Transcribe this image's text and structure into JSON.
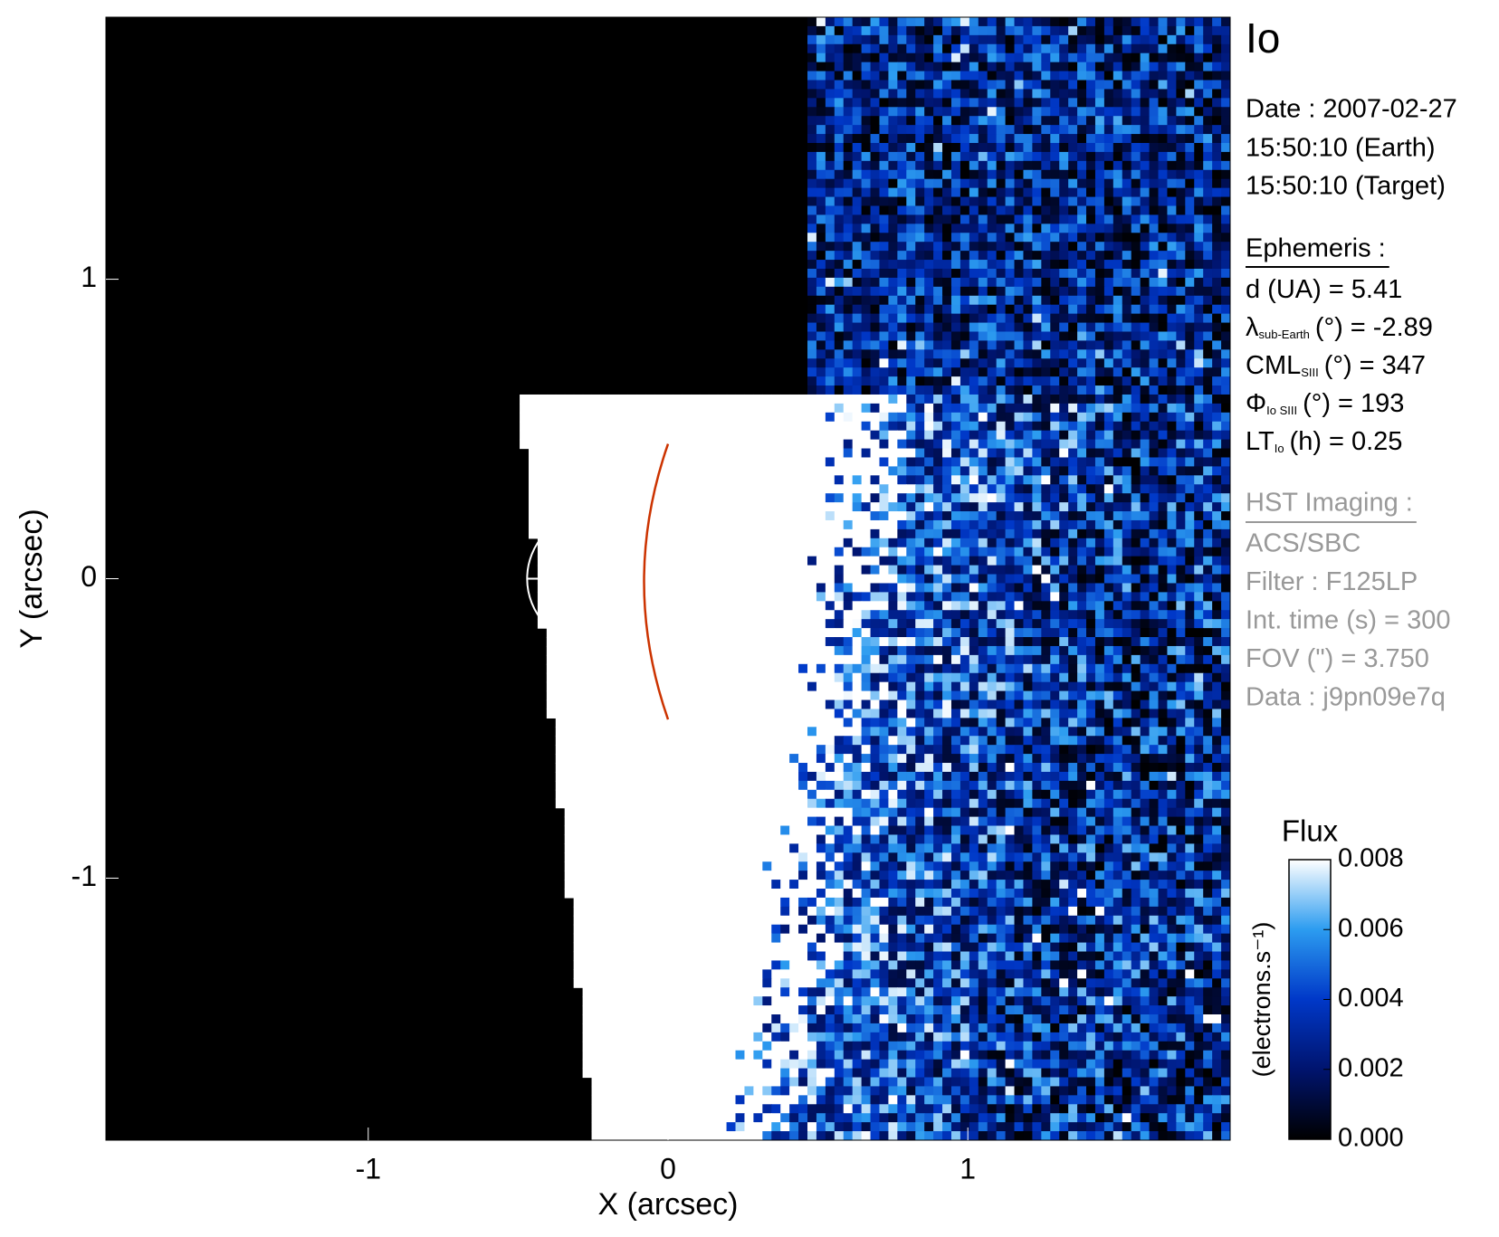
{
  "chart_data": {
    "type": "heatmap",
    "title": "Io",
    "xlabel": "X (arcsec)",
    "ylabel": "Y (arcsec)",
    "xlim": [
      -1.875,
      1.875
    ],
    "ylim": [
      -1.875,
      1.875
    ],
    "xticks": [
      -1,
      0,
      1
    ],
    "yticks": [
      -1,
      0,
      1
    ],
    "colorbar": {
      "label": "Flux",
      "unit": "(electrons.s⁻¹)",
      "lim": [
        0,
        0.008
      ],
      "ticks": [
        {
          "value": 0,
          "label": "0.000"
        },
        {
          "value": 0.002,
          "label": "0.002"
        },
        {
          "value": 0.004,
          "label": "0.004"
        },
        {
          "value": 0.006,
          "label": "0.006"
        },
        {
          "value": 0.008,
          "label": "0.008"
        }
      ],
      "colors": [
        "#000000",
        "#00146e",
        "#0038c8",
        "#2c9cf0",
        "#ffffff"
      ]
    },
    "date": "Date : 2007-02-27",
    "times": [
      "15:50:10 (Earth)",
      "15:50:10 (Target)"
    ],
    "ephemeris": {
      "title": "Ephemeris :",
      "lines": [
        {
          "label": "d (UA)",
          "value": "= 5.41"
        },
        {
          "label": "λ",
          "sub": "sub-Earth",
          "unit": "(°)",
          "value": "= -2.89"
        },
        {
          "label": "CML",
          "sub": "SIII",
          "unit": "(°)",
          "value": "= 347"
        },
        {
          "label": "Φ",
          "sub": "Io SIII",
          "unit": "(°)",
          "value": "= 193"
        },
        {
          "label": "LT",
          "sub": "Io",
          "unit": "(h)",
          "value": "= 0.25"
        }
      ]
    },
    "hst": {
      "title": "HST Imaging :",
      "lines": [
        "ACS/SBC",
        "Filter : F125LP",
        "Int. time (s) = 300",
        "FOV (\") = 3.750",
        "Data : j9pn09e7q"
      ]
    }
  }
}
